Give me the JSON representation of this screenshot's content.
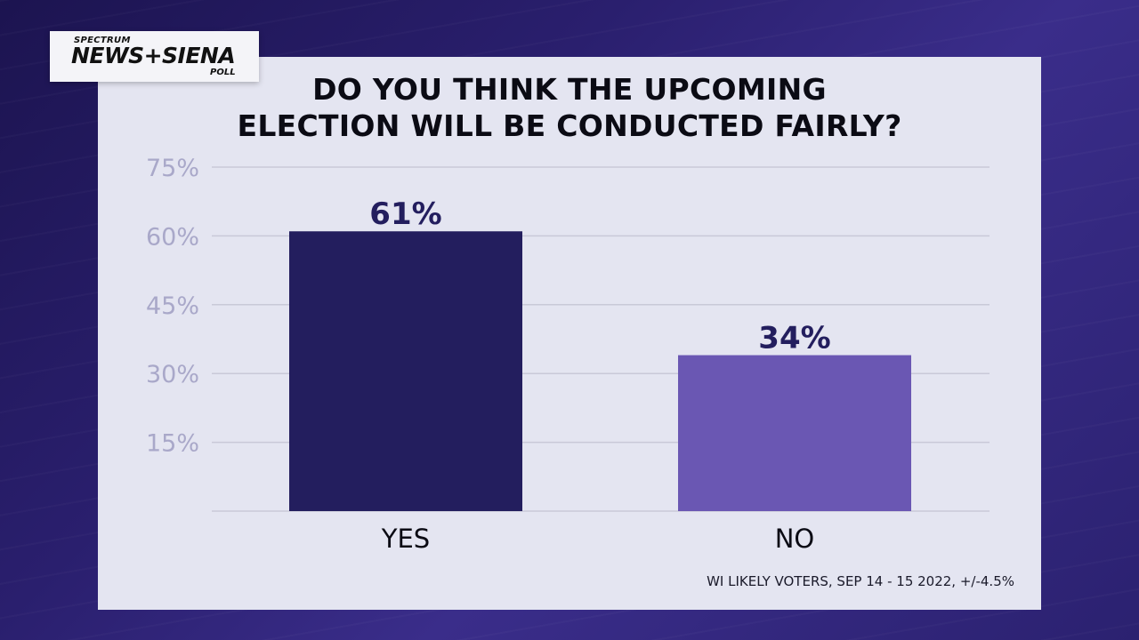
{
  "logo": {
    "brand": "SPECTRUM",
    "main": "NEWS+SIENA",
    "sub": "POLL"
  },
  "title_line1": "DO YOU THINK THE UPCOMING",
  "title_line2": "ELECTION WILL BE CONDUCTED FAIRLY?",
  "footnote": "WI LIKELY VOTERS, SEP 14 - 15 2022, +/-4.5%",
  "colors": {
    "yes_bar": "#231e5e",
    "no_bar": "#6a57b3",
    "tick_text": "#a9a8c9",
    "value_text": "#231e5e"
  },
  "chart_data": {
    "type": "bar",
    "title": "DO YOU THINK THE UPCOMING ELECTION WILL BE CONDUCTED FAIRLY?",
    "categories": [
      "YES",
      "NO"
    ],
    "values": [
      61,
      34
    ],
    "value_labels": [
      "61%",
      "34%"
    ],
    "ylim": [
      0,
      75
    ],
    "yticks": [
      15,
      30,
      45,
      60,
      75
    ],
    "ytick_labels": [
      "15%",
      "30%",
      "45%",
      "60%",
      "75%"
    ],
    "grid": true,
    "xlabel": "",
    "ylabel": ""
  }
}
